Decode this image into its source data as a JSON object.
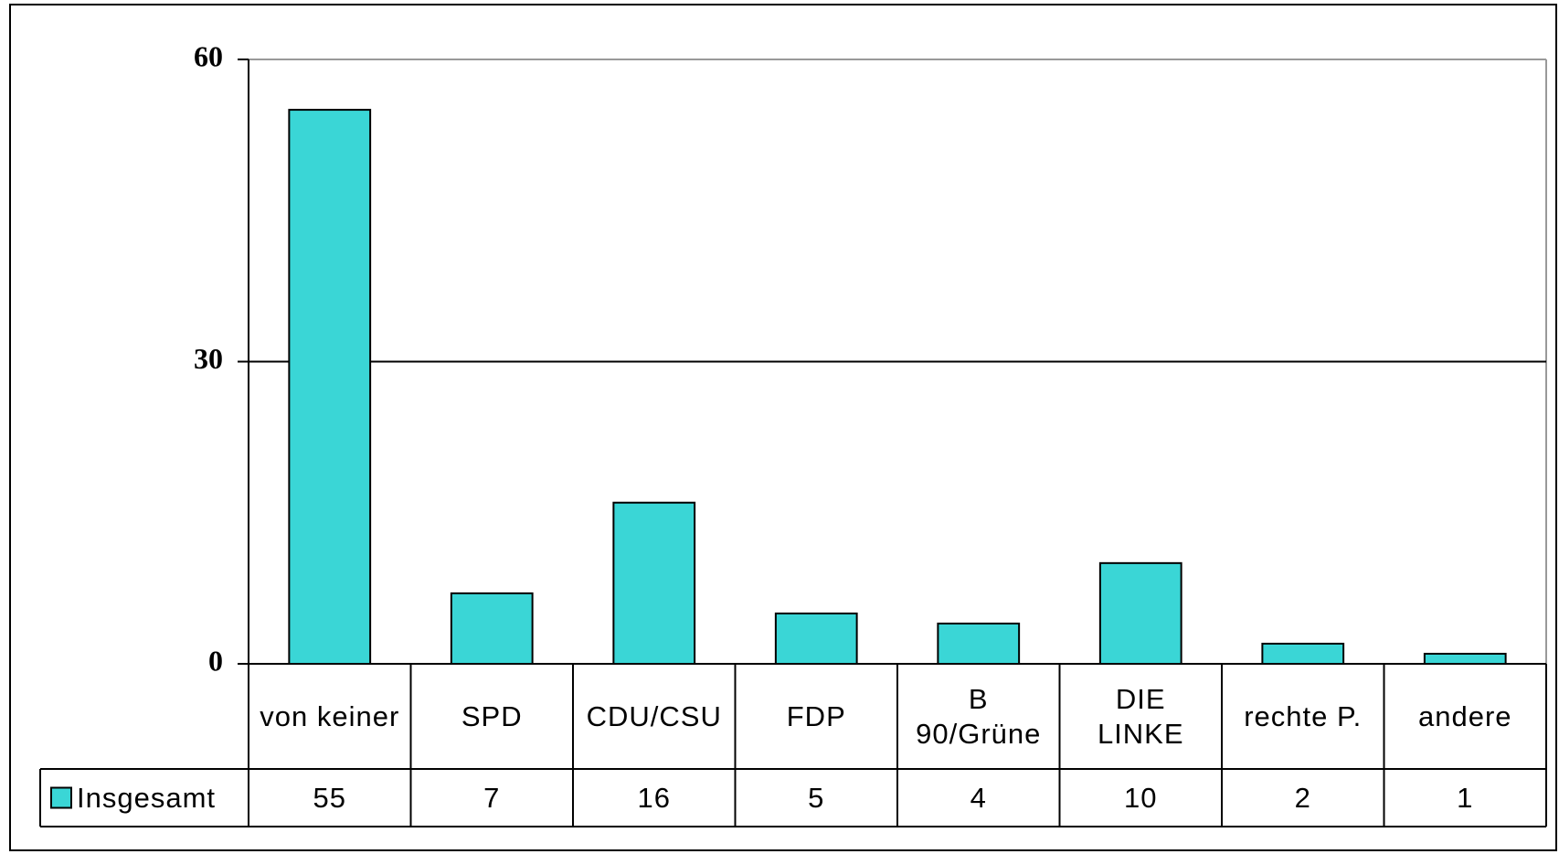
{
  "chart_data": {
    "type": "bar",
    "categories": [
      "von keiner",
      "SPD",
      "CDU/CSU",
      "FDP",
      "B\n90/Grüne",
      "DIE\nLINKE",
      "rechte P.",
      "andere"
    ],
    "series": [
      {
        "name": "Insgesamt",
        "color": "#3ad6d6",
        "values": [
          55,
          7,
          16,
          5,
          4,
          10,
          2,
          1
        ]
      }
    ],
    "ylim": [
      0,
      60
    ],
    "yticks": [
      0,
      30,
      60
    ],
    "grid": true,
    "data_table": true
  }
}
